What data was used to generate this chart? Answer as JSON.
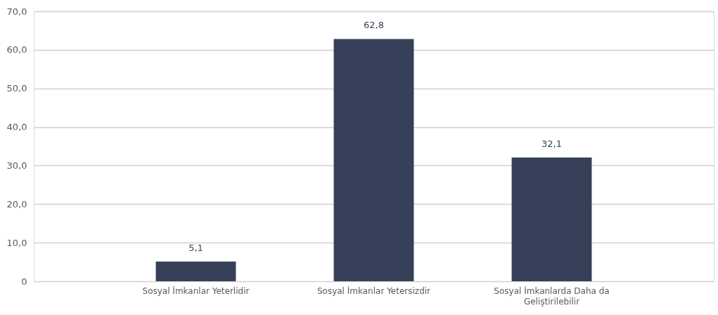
{
  "chart_data": {
    "type": "bar",
    "categories": [
      "Sosyal İmkanlar Yeterlidir",
      "Sosyal İmkanlar Yetersizdir",
      "Sosyal İmkanlarda Daha da Geliştirilebilir"
    ],
    "values": [
      5.1,
      62.8,
      32.1
    ],
    "color": "#374059",
    "value_labels": [
      "5,1",
      "62,8",
      "32,1"
    ],
    "ylim": [
      0,
      70
    ],
    "yticks": [
      0,
      {
        "value": 10,
        "label": "10,0"
      },
      {
        "value": 20,
        "label": "20,0"
      },
      {
        "value": 30,
        "label": "30,0"
      },
      {
        "value": 40,
        "label": "40,0"
      },
      {
        "value": 50,
        "label": "50,0"
      },
      {
        "value": 60,
        "label": "60,0"
      },
      {
        "value": 70,
        "label": "70,0"
      }
    ],
    "grid": "y"
  }
}
